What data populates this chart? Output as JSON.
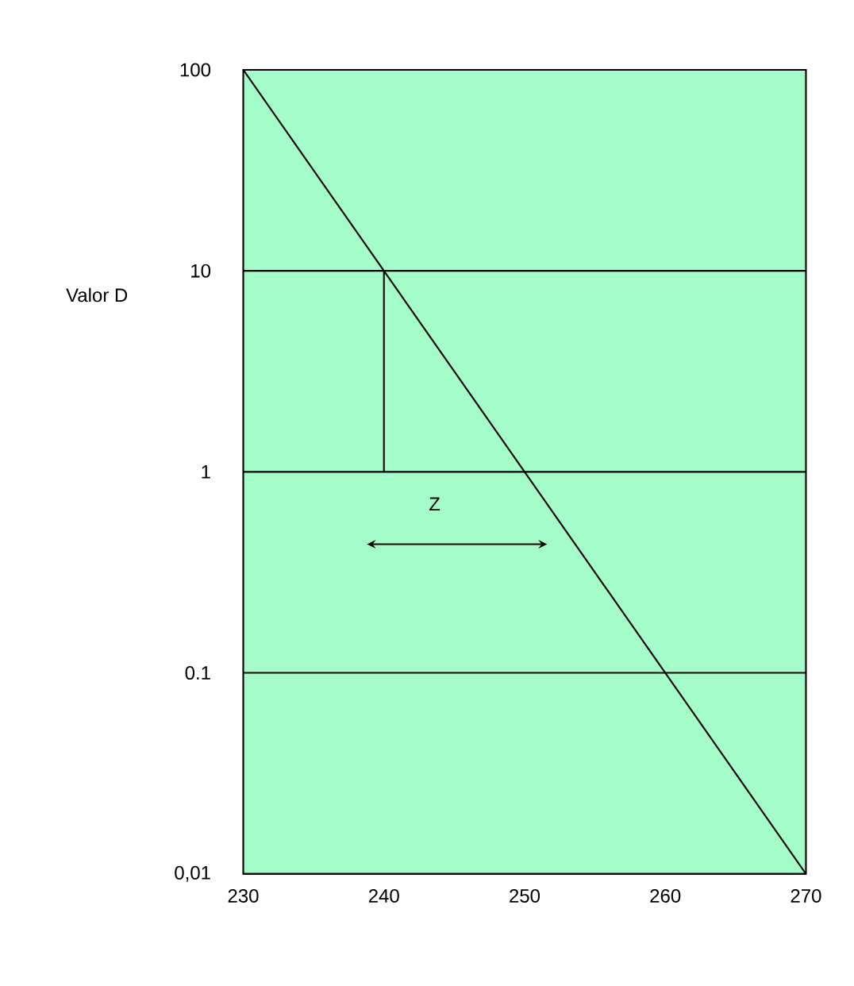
{
  "chart_data": {
    "type": "line",
    "ylabel": "Valor D",
    "log": "y",
    "grid": "y",
    "xlim": [
      230,
      270
    ],
    "ylim": [
      0.01,
      100
    ],
    "xticks": [
      230,
      240,
      250,
      260,
      270
    ],
    "yticks": [
      100,
      10,
      1,
      0.1,
      {
        "value": 0.01,
        "label": "0,01"
      }
    ],
    "series": [
      {
        "x": [
          230,
          270
        ],
        "values": [
          100,
          0.01
        ],
        "color": "#000000"
      },
      {
        "x": [
          240,
          240
        ],
        "values": [
          1,
          10
        ],
        "color": "#000000"
      }
    ],
    "annotations": [
      "Z"
    ]
  }
}
